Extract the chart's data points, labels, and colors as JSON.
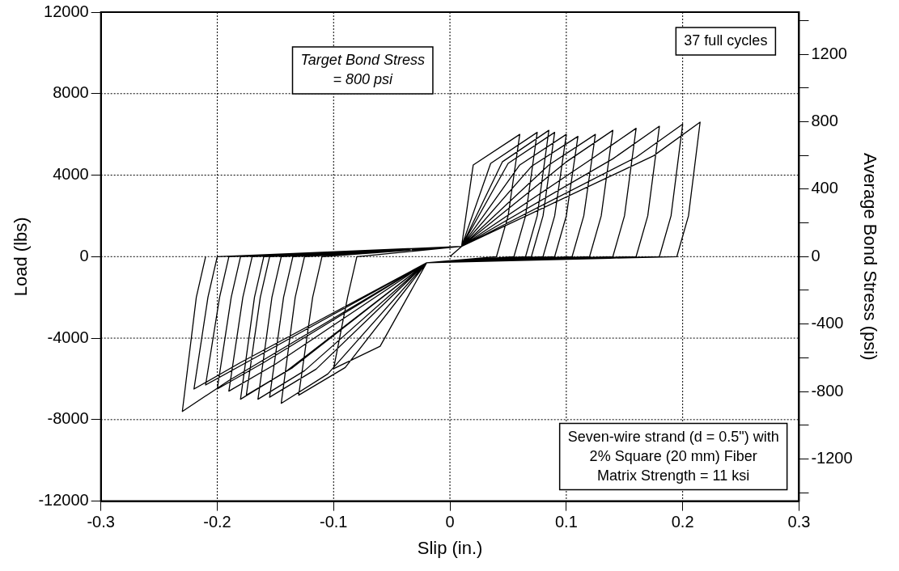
{
  "chart_data": {
    "type": "line",
    "xlabel": "Slip (in.)",
    "ylabel": "Load (lbs)",
    "y2label": "Average Bond Stress (psi)",
    "annotations": [
      "Target Bond Stress\n= 800 psi",
      "37 full cycles",
      "Seven-wire strand (d = 0.5\") with\n2% Square (20 mm) Fiber\nMatrix Strength = 11 ksi"
    ],
    "xlim": [
      -0.3,
      0.3
    ],
    "xticks": [
      -0.3,
      -0.2,
      -0.1,
      0,
      0.1,
      0.2,
      0.3
    ],
    "ylim": [
      -12000,
      12000
    ],
    "yticks": [
      -12000,
      -8000,
      -4000,
      0,
      4000,
      8000,
      12000
    ],
    "y2lim": [
      -1450,
      1450
    ],
    "y2ticks": [
      {
        "value": -1400,
        "label": null
      },
      -1200,
      {
        "value": -1000,
        "label": null
      },
      -800,
      {
        "value": -600,
        "label": null
      },
      -400,
      {
        "value": -200,
        "label": null
      },
      0,
      {
        "value": 200,
        "label": null
      },
      400,
      {
        "value": 600,
        "label": null
      },
      800,
      {
        "value": 1000,
        "label": null
      },
      1200,
      {
        "value": 1400,
        "label": null
      }
    ],
    "grid": true,
    "legend": false,
    "marker": "none",
    "line_style": "solid",
    "series": [
      {
        "color": "#000000",
        "x": [
          0,
          0.01,
          0.02,
          0.06,
          0.05,
          0.04,
          -0.02,
          -0.06,
          -0.1,
          -0.088,
          -0.08,
          0.01,
          0.035,
          0.075,
          0.065,
          0.055,
          -0.02,
          -0.09,
          -0.13,
          -0.118,
          -0.11,
          0.01,
          0.045,
          0.085,
          0.075,
          0.065,
          -0.02,
          -0.105,
          -0.145,
          -0.133,
          -0.125,
          0.01,
          0.05,
          0.09,
          0.08,
          0.07,
          -0.02,
          -0.115,
          -0.155,
          -0.143,
          -0.135,
          0.01,
          0.06,
          0.1,
          0.09,
          0.08,
          -0.02,
          -0.125,
          -0.165,
          -0.153,
          -0.145,
          0.01,
          0.07,
          0.11,
          0.1,
          0.09,
          -0.02,
          -0.135,
          -0.175,
          -0.163,
          -0.155,
          0.01,
          0.085,
          0.125,
          0.115,
          0.105,
          -0.02,
          -0.14,
          -0.18,
          -0.168,
          -0.16,
          0.01,
          0.1,
          0.14,
          0.13,
          0.12,
          -0.02,
          -0.15,
          -0.19,
          -0.178,
          -0.17,
          0.01,
          0.12,
          0.16,
          0.15,
          0.14,
          -0.02,
          -0.16,
          -0.2,
          -0.188,
          -0.18,
          0.01,
          0.14,
          0.18,
          0.17,
          0.16,
          -0.02,
          -0.17,
          -0.21,
          -0.198,
          -0.19,
          0.01,
          0.16,
          0.2,
          0.19,
          0.18,
          -0.02,
          -0.18,
          -0.22,
          -0.208,
          -0.2,
          0.01,
          0.175,
          0.215,
          0.205,
          0.195,
          -0.02,
          -0.19,
          -0.23,
          -0.218,
          -0.21
        ],
        "values": [
          0,
          500,
          4500,
          6000,
          2000,
          0,
          -300,
          -4400,
          -5500,
          -2000,
          0,
          500,
          4575,
          6100,
          2000,
          0,
          -300,
          -5440,
          -6800,
          -2000,
          0,
          500,
          4650,
          6200,
          2000,
          0,
          -300,
          -5760,
          -7200,
          -2000,
          0,
          500,
          4575,
          6100,
          2000,
          0,
          -300,
          -5520,
          -6900,
          -2000,
          0,
          500,
          4500,
          6000,
          2000,
          0,
          -300,
          -5600,
          -7000,
          -2000,
          0,
          500,
          4425,
          5900,
          2000,
          0,
          -300,
          -5440,
          -6800,
          -2000,
          0,
          500,
          4500,
          6000,
          2000,
          0,
          -300,
          -5600,
          -7000,
          -2000,
          0,
          500,
          4650,
          6200,
          2000,
          0,
          -300,
          -5280,
          -6600,
          -2000,
          0,
          500,
          4725,
          6300,
          2000,
          0,
          -300,
          -5200,
          -6500,
          -2000,
          0,
          500,
          4800,
          6400,
          2000,
          0,
          -300,
          -5040,
          -6300,
          -2000,
          0,
          500,
          4875,
          6500,
          2000,
          0,
          -300,
          -5200,
          -6500,
          -2000,
          0,
          500,
          4950,
          6600,
          2000,
          0,
          -300,
          -6080,
          -7600,
          -2000,
          0
        ]
      }
    ]
  }
}
